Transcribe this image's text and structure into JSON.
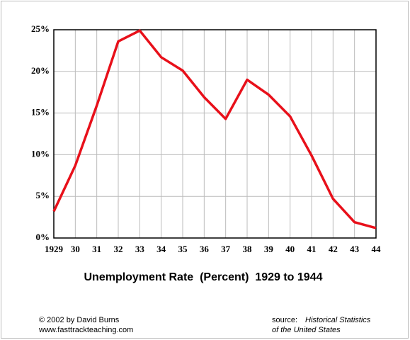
{
  "chart_data": {
    "type": "line",
    "title": "Unemployment Rate  (Percent)  1929 to 1944",
    "categories": [
      "1929",
      "30",
      "31",
      "32",
      "33",
      "34",
      "35",
      "36",
      "37",
      "38",
      "39",
      "40",
      "41",
      "42",
      "43",
      "44"
    ],
    "series": [
      {
        "name": "Unemployment Rate",
        "color": "#e8101a",
        "values": [
          3.2,
          8.7,
          15.9,
          23.6,
          24.9,
          21.7,
          20.1,
          16.9,
          14.3,
          19.0,
          17.2,
          14.6,
          9.9,
          4.7,
          1.9,
          1.2
        ]
      }
    ],
    "ylim": [
      0,
      25
    ],
    "yticks": [
      {
        "value": 0,
        "label": "0%"
      },
      {
        "value": 5,
        "label": "5%"
      },
      {
        "value": 10,
        "label": "10%"
      },
      {
        "value": 15,
        "label": "15%"
      },
      {
        "value": 20,
        "label": "20%"
      },
      {
        "value": 25,
        "label": "25%"
      }
    ],
    "grid": true,
    "footer": {
      "copyright": "© 2002 by David Burns",
      "website": "www.fasttrackteaching.com",
      "source_label": "source:",
      "source_title_1": "Historical Statistics",
      "source_title_2": "of the United States"
    }
  }
}
